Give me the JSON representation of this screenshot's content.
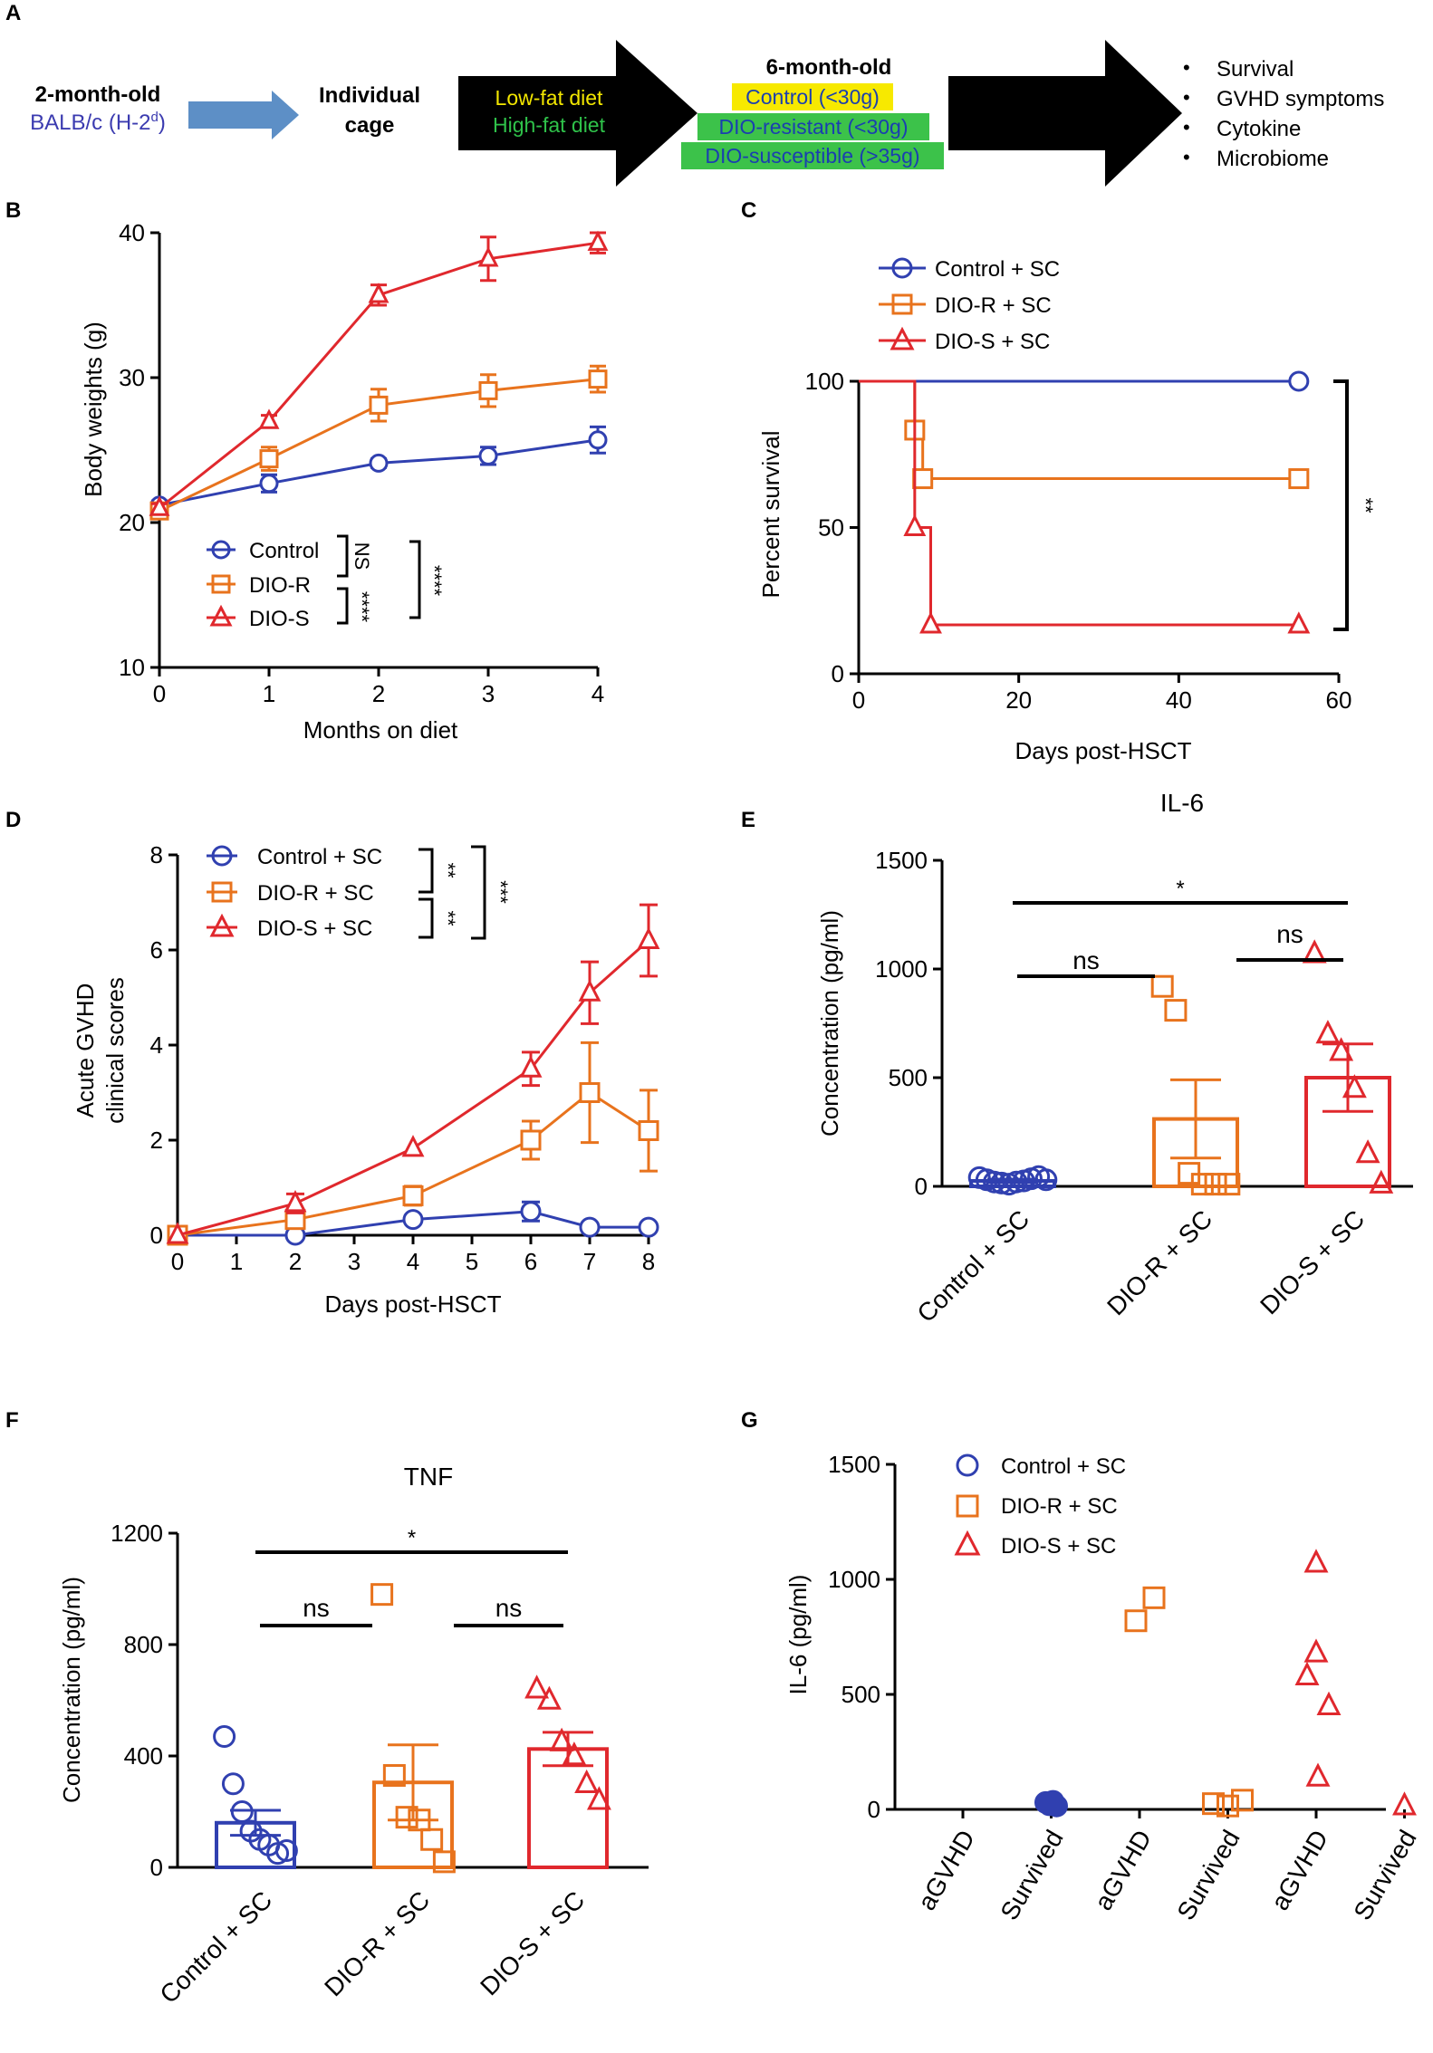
{
  "colors": {
    "control": "#3040b0",
    "dio_r": "#e8731d",
    "dio_s": "#e0282d",
    "bar_s": "#b5191e",
    "arrow_blue": "#5d8fc6",
    "balb_blue": "#3b3bb0",
    "low_fat_text": "#f2e600",
    "high_fat_text": "#2fc24a",
    "control_box": "#f7e900",
    "green_box": "#3cc24a",
    "green_box_text": "#1a3fb0",
    "black": "#000000"
  },
  "panel_a": {
    "label": "A",
    "start_line1": "2-month-old",
    "start_line2": "BALB/c (H-2",
    "start_sup": "d",
    "start_close": ")",
    "cage_line1": "Individual",
    "cage_line2": "cage",
    "diet_low": "Low-fat diet",
    "diet_high": "High-fat diet",
    "six_month": "6-month-old",
    "group_control": "Control (<30g)",
    "group_resistant": "DIO-resistant (<30g)",
    "group_susceptible": "DIO-susceptible (>35g)",
    "outcomes": [
      "Survival",
      "GVHD symptoms",
      "Cytokine",
      "Microbiome"
    ],
    "bullet": "•"
  },
  "chart_data": [
    {
      "panel": "B",
      "type": "line",
      "title": "",
      "xlabel": "Months on diet",
      "ylabel": "Body weights (g)",
      "x": [
        0,
        1,
        2,
        3,
        4
      ],
      "xticks": [
        "0",
        "1",
        "2",
        "3",
        "4"
      ],
      "yticks": [
        "10",
        "20",
        "30",
        "40"
      ],
      "xlim": [
        0,
        4
      ],
      "ylim": [
        10,
        40
      ],
      "series": [
        {
          "name": "Control",
          "values": [
            21.2,
            22.7,
            24.1,
            24.6,
            25.7
          ],
          "err": [
            0.3,
            0.6,
            0.3,
            0.6,
            0.9
          ]
        },
        {
          "name": "DIO-R",
          "values": [
            20.8,
            24.4,
            28.1,
            29.1,
            29.9
          ],
          "err": [
            0.3,
            0.8,
            1.1,
            1.1,
            0.9
          ]
        },
        {
          "name": "DIO-S",
          "values": [
            21.0,
            27.0,
            35.7,
            38.2,
            39.3
          ],
          "err": [
            0.3,
            0.4,
            0.7,
            1.5,
            0.7
          ]
        }
      ],
      "annotations": {
        "ns": "NS",
        "sig1": "****",
        "sig2": "****"
      }
    },
    {
      "panel": "C",
      "type": "line",
      "subtype": "survival",
      "xlabel": "Days post-HSCT",
      "ylabel": "Percent survival",
      "xticks": [
        "0",
        "20",
        "40",
        "60"
      ],
      "yticks": [
        "0",
        "50",
        "100"
      ],
      "xlim": [
        0,
        60
      ],
      "ylim": [
        0,
        100
      ],
      "series": [
        {
          "name": "Control + SC",
          "steps": [
            [
              0,
              100
            ],
            [
              55,
              100
            ]
          ],
          "marks": [
            [
              55,
              100
            ]
          ]
        },
        {
          "name": "DIO-R + SC",
          "steps": [
            [
              7,
              100
            ],
            [
              7,
              83.3
            ],
            [
              8,
              83.3
            ],
            [
              8,
              66.7
            ],
            [
              55,
              66.7
            ]
          ],
          "marks": [
            [
              7,
              83.3
            ],
            [
              8,
              66.7
            ],
            [
              55,
              66.7
            ]
          ]
        },
        {
          "name": "DIO-S + SC",
          "steps": [
            [
              0,
              100
            ],
            [
              7,
              100
            ],
            [
              7,
              50
            ],
            [
              9,
              50
            ],
            [
              9,
              16.7
            ],
            [
              55,
              16.7
            ]
          ],
          "marks": [
            [
              7,
              50
            ],
            [
              9,
              16.7
            ],
            [
              55,
              16.7
            ]
          ]
        }
      ],
      "annotations": {
        "sig": "**"
      }
    },
    {
      "panel": "D",
      "type": "line",
      "xlabel": "Days post-HSCT",
      "ylabel_line1": "Acute GVHD",
      "ylabel_line2": "clinical scores",
      "xticks": [
        "0",
        "1",
        "2",
        "3",
        "4",
        "5",
        "6",
        "7",
        "8"
      ],
      "yticks": [
        "0",
        "2",
        "4",
        "6",
        "8"
      ],
      "xlim": [
        0,
        8
      ],
      "ylim": [
        0,
        8
      ],
      "series": [
        {
          "name": "Control + SC",
          "x": [
            0,
            2,
            4,
            6,
            7,
            8
          ],
          "values": [
            0,
            0,
            0.33,
            0.5,
            0.17,
            0.17
          ],
          "err": [
            0,
            0,
            0.05,
            0.2,
            0.05,
            0.05
          ]
        },
        {
          "name": "DIO-R + SC",
          "x": [
            0,
            2,
            4,
            6,
            7,
            8
          ],
          "values": [
            0,
            0.33,
            0.83,
            2.0,
            3.0,
            2.2
          ],
          "err": [
            0,
            0.1,
            0.2,
            0.4,
            1.05,
            0.85
          ]
        },
        {
          "name": "DIO-S + SC",
          "x": [
            0,
            2,
            4,
            6,
            7,
            8
          ],
          "values": [
            0,
            0.67,
            1.83,
            3.5,
            5.1,
            6.2
          ],
          "err": [
            0,
            0.2,
            0.1,
            0.35,
            0.65,
            0.75
          ]
        }
      ],
      "annotations": {
        "sig1": "**",
        "sig2": "**",
        "sig3": "***"
      }
    },
    {
      "panel": "E",
      "type": "bar",
      "title": "IL-6",
      "ylabel": "Concentration (pg/ml)",
      "categories": [
        "Control + SC",
        "DIO-R + SC",
        "DIO-S + SC"
      ],
      "yticks": [
        "0",
        "500",
        "1000",
        "1500"
      ],
      "ylim": [
        0,
        1500
      ],
      "values": [
        25,
        310,
        500
      ],
      "err": [
        8,
        180,
        155
      ],
      "points": [
        [
          40,
          30,
          20,
          15,
          10,
          20,
          25,
          35,
          45,
          30
        ],
        [
          920,
          810,
          60,
          10,
          10,
          10
        ],
        [
          1070,
          700,
          620,
          450,
          150,
          10
        ]
      ],
      "annotations": {
        "overall": "*",
        "left": "ns",
        "right": "ns"
      }
    },
    {
      "panel": "F",
      "type": "bar",
      "title": "TNF",
      "ylabel": "Concentration (pg/ml)",
      "categories": [
        "Control + SC",
        "DIO-R + SC",
        "DIO-S + SC"
      ],
      "yticks": [
        "0",
        "400",
        "800",
        "1200"
      ],
      "ylim": [
        0,
        1200
      ],
      "values": [
        160,
        305,
        425
      ],
      "err": [
        45,
        135,
        60
      ],
      "points": [
        [
          470,
          300,
          200,
          130,
          100,
          80,
          50,
          60
        ],
        [
          980,
          330,
          180,
          170,
          100,
          20
        ],
        [
          640,
          600,
          450,
          400,
          300,
          240
        ]
      ],
      "annotations": {
        "overall": "*",
        "left": "ns",
        "right": "ns"
      }
    },
    {
      "panel": "G",
      "type": "scatter",
      "ylabel": "IL-6 (pg/ml)",
      "categories": [
        "aGVHD",
        "Survived",
        "aGVHD",
        "Survived",
        "aGVHD",
        "Survived"
      ],
      "yticks": [
        "0",
        "500",
        "1000",
        "1500"
      ],
      "ylim": [
        0,
        1500
      ],
      "series": [
        {
          "name": "Control + SC",
          "points": [
            [
              1,
              30
            ],
            [
              1,
              20
            ],
            [
              1,
              35
            ],
            [
              1,
              15
            ]
          ]
        },
        {
          "name": "DIO-R + SC",
          "points": [
            [
              2,
              920
            ],
            [
              2,
              820
            ],
            [
              3,
              25
            ],
            [
              3,
              15
            ],
            [
              3,
              40
            ]
          ]
        },
        {
          "name": "DIO-S + SC",
          "points": [
            [
              4,
              1070
            ],
            [
              4,
              680
            ],
            [
              4,
              580
            ],
            [
              4,
              450
            ],
            [
              4,
              140
            ],
            [
              5,
              15
            ]
          ]
        }
      ]
    }
  ],
  "panel_labels": {
    "b": "B",
    "c": "C",
    "d": "D",
    "e": "E",
    "f": "F",
    "g": "G"
  }
}
